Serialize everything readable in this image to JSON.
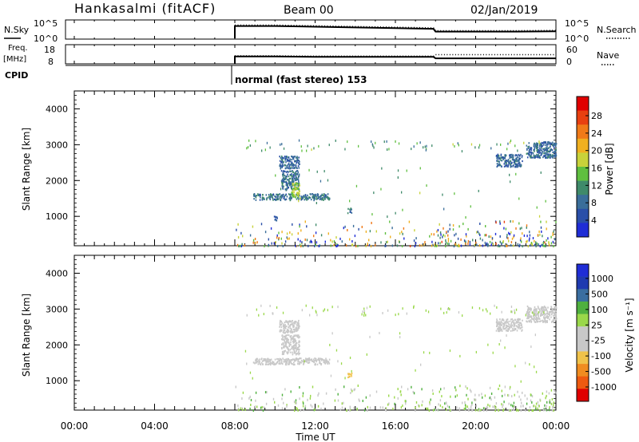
{
  "header": {
    "station": "Hankasalmi (fitACF)",
    "beam": "Beam 00",
    "date": "02/Jan/2019"
  },
  "strips": {
    "nsky_label": "N.Sky",
    "nsky_ticks": [
      "10^5",
      "10^0"
    ],
    "nsearch_label": "N.Search",
    "nsearch_ticks": [
      "10^5",
      "10^0"
    ],
    "freq_label_1": "Freq.",
    "freq_label_2": "[MHz]",
    "freq_ticks": [
      "18",
      "8"
    ],
    "nave_label": "Nave",
    "nave_ticks": [
      "60",
      "0"
    ],
    "cpid_label": "CPID",
    "cpid_text": "normal (fast stereo) 153"
  },
  "panels": {
    "ylabel": "Slant Range [km]",
    "xlabel": "Time UT",
    "power_colorbar_label": "Power [dB]",
    "velocity_colorbar_label": "Velocity  [m s⁻¹]"
  },
  "colors": {
    "power_scale": [
      "#1f2dd6",
      "#2a4fa8",
      "#3a6e9a",
      "#3f8a6a",
      "#5fbf3f",
      "#c8d23a",
      "#f0b020",
      "#f07a18",
      "#e84010",
      "#e00000"
    ],
    "velocity_scale": [
      "#e00000",
      "#ee5a10",
      "#f08c20",
      "#f0c24a",
      "#c8c8c8",
      "#c8c8c8",
      "#9ad84a",
      "#4fb03f",
      "#3a6ea0",
      "#1f3ab0",
      "#1f2dd6"
    ],
    "scatter_gray": "#c8c8c8"
  },
  "chart_data": [
    {
      "type": "line",
      "name": "N.Sky / N.Search",
      "x": [
        "08:00",
        "10:00",
        "12:00",
        "14:00",
        "16:00",
        "17:54",
        "18:00",
        "20:00",
        "22:00",
        "24:00"
      ],
      "series": [
        {
          "name": "N.Sky",
          "values": [
            0.7,
            0.7,
            0.66,
            0.62,
            0.58,
            0.54,
            0.38,
            0.38,
            0.38,
            0.4
          ]
        }
      ],
      "ylim": [
        0,
        1
      ]
    },
    {
      "type": "line",
      "name": "Freq. / Nave",
      "x": [
        "08:00",
        "10:00",
        "12:00",
        "14:00",
        "16:00",
        "17:54",
        "18:00",
        "20:00",
        "22:00",
        "24:00"
      ],
      "series": [
        {
          "name": "Freq.",
          "values": [
            12,
            12,
            11.8,
            11.8,
            11.8,
            11.8,
            11,
            11,
            11,
            11
          ]
        },
        {
          "name": "Nave",
          "values": [
            26,
            26,
            25,
            25,
            25,
            25,
            30,
            30,
            30,
            30
          ]
        }
      ],
      "ylim": [
        8,
        18
      ]
    },
    {
      "type": "heatmap",
      "title": "Power [dB]",
      "xlabel": "Time UT",
      "ylabel": "Slant Range [km]",
      "xlim": [
        0,
        24
      ],
      "ylim": [
        180,
        4500
      ],
      "xticks": [
        "00:00",
        "04:00",
        "08:00",
        "12:00",
        "16:00",
        "20:00",
        "00:00"
      ],
      "yticks": [
        "1000",
        "2000",
        "3000",
        "4000"
      ],
      "colorbar_ticks": [
        "4",
        "8",
        "12",
        "16",
        "20",
        "24",
        "28"
      ],
      "colorbar_range": [
        0,
        30
      ],
      "regions": [
        {
          "t_start": 8.9,
          "t_end": 12.7,
          "range_start": 1470,
          "range_end": 1650,
          "value": 8
        },
        {
          "t_start": 10.3,
          "t_end": 11.2,
          "range_start": 1750,
          "range_end": 2300,
          "value": 8
        },
        {
          "t_start": 10.8,
          "t_end": 11.2,
          "range_start": 1550,
          "range_end": 1950,
          "value": 15
        },
        {
          "t_start": 10.2,
          "t_end": 11.2,
          "range_start": 2350,
          "range_end": 2700,
          "value": 7
        },
        {
          "t_start": 21.0,
          "t_end": 22.3,
          "range_start": 2400,
          "range_end": 2750,
          "value": 7
        },
        {
          "t_start": 22.5,
          "t_end": 24.0,
          "range_start": 2650,
          "range_end": 3100,
          "value": 7
        },
        {
          "t_start": 9.9,
          "t_end": 10.1,
          "range_start": 900,
          "range_end": 1050,
          "value": 6
        },
        {
          "t_start": 13.6,
          "t_end": 13.8,
          "range_start": 1100,
          "range_end": 1250,
          "value": 8
        }
      ]
    },
    {
      "type": "heatmap",
      "title": "Velocity [m s-1]",
      "xlabel": "Time UT",
      "ylabel": "Slant Range [km]",
      "xlim": [
        0,
        24
      ],
      "ylim": [
        180,
        4500
      ],
      "xticks": [
        "00:00",
        "04:00",
        "08:00",
        "12:00",
        "16:00",
        "20:00",
        "00:00"
      ],
      "yticks": [
        "1000",
        "2000",
        "3000",
        "4000"
      ],
      "colorbar_ticks": [
        "1000",
        "500",
        "100",
        "25",
        "-25",
        "-100",
        "-500",
        "-1000"
      ],
      "colorbar_range": [
        -1000,
        1000
      ],
      "regions": [
        {
          "t_start": 8.9,
          "t_end": 12.7,
          "range_start": 1470,
          "range_end": 1650,
          "value": 0
        },
        {
          "t_start": 10.3,
          "t_end": 11.2,
          "range_start": 1750,
          "range_end": 2300,
          "value": 0
        },
        {
          "t_start": 10.2,
          "t_end": 11.2,
          "range_start": 2350,
          "range_end": 2700,
          "value": 0
        },
        {
          "t_start": 21.0,
          "t_end": 22.3,
          "range_start": 2400,
          "range_end": 2750,
          "value": 0
        },
        {
          "t_start": 22.5,
          "t_end": 24.0,
          "range_start": 2650,
          "range_end": 3100,
          "value": 0
        },
        {
          "t_start": 13.6,
          "t_end": 13.8,
          "range_start": 1100,
          "range_end": 1250,
          "value": -300
        }
      ]
    }
  ]
}
